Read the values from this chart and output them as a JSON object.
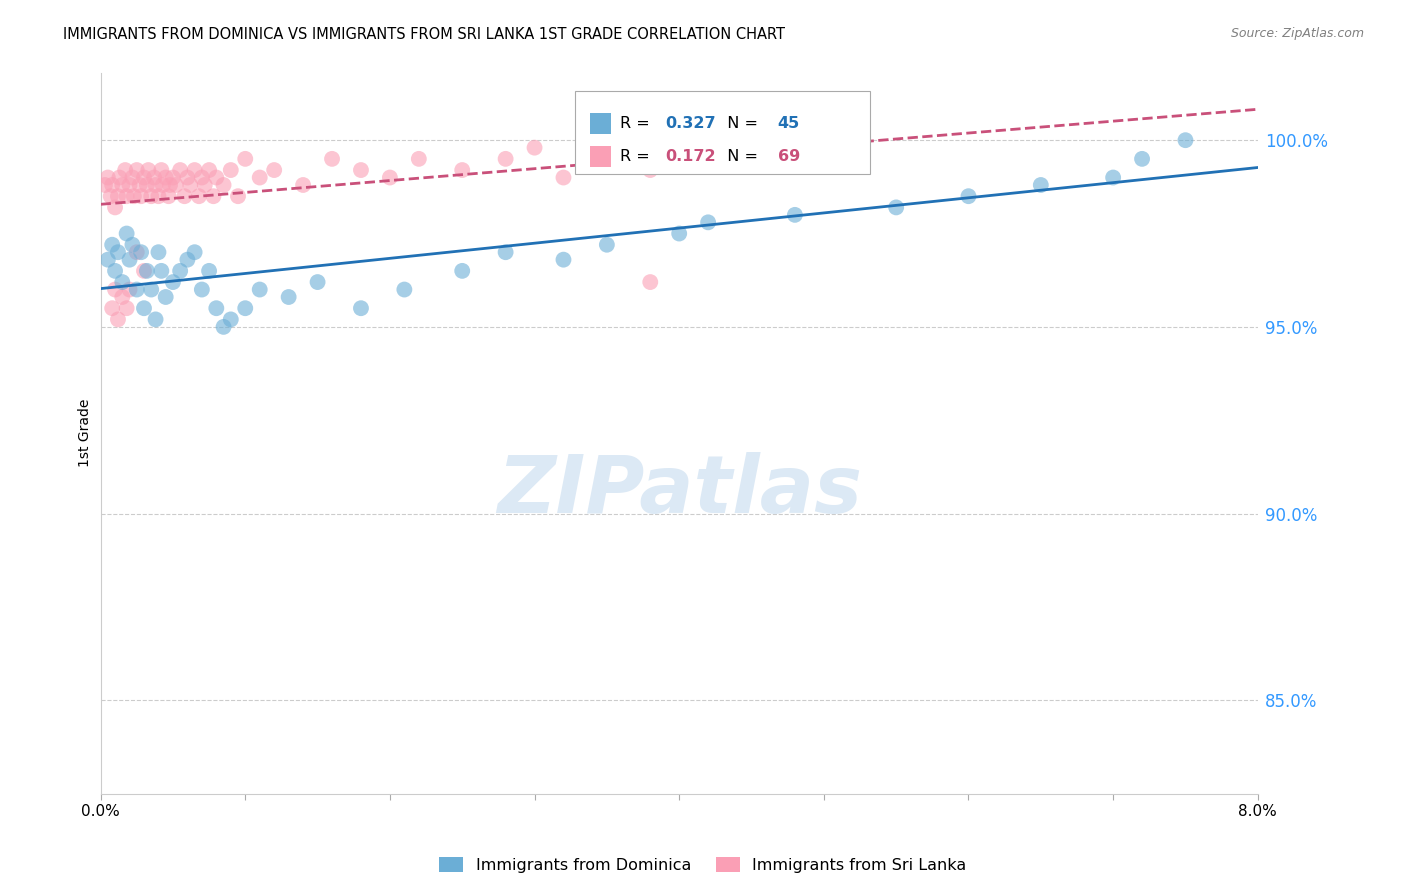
{
  "title": "IMMIGRANTS FROM DOMINICA VS IMMIGRANTS FROM SRI LANKA 1ST GRADE CORRELATION CHART",
  "source": "Source: ZipAtlas.com",
  "ylabel": "1st Grade",
  "right_yticks": [
    100.0,
    95.0,
    90.0,
    85.0
  ],
  "xlim": [
    0.0,
    8.0
  ],
  "ylim": [
    82.5,
    101.8
  ],
  "dominica_R": 0.327,
  "dominica_N": 45,
  "srilanka_R": 0.172,
  "srilanka_N": 69,
  "dominica_color": "#6baed6",
  "srilanka_color": "#fa9fb5",
  "trend_dominica_color": "#2171b5",
  "trend_srilanka_color": "#c9507a",
  "watermark_color": "#dce9f5",
  "dominica_x": [
    0.05,
    0.08,
    0.1,
    0.12,
    0.15,
    0.18,
    0.2,
    0.22,
    0.25,
    0.28,
    0.3,
    0.32,
    0.35,
    0.38,
    0.4,
    0.42,
    0.45,
    0.5,
    0.55,
    0.6,
    0.65,
    0.7,
    0.75,
    0.8,
    0.85,
    0.9,
    1.0,
    1.1,
    1.3,
    1.5,
    1.8,
    2.1,
    2.5,
    2.8,
    3.2,
    3.5,
    4.0,
    4.2,
    4.8,
    5.5,
    6.0,
    6.5,
    7.0,
    7.2,
    7.5
  ],
  "dominica_y": [
    96.8,
    97.2,
    96.5,
    97.0,
    96.2,
    97.5,
    96.8,
    97.2,
    96.0,
    97.0,
    95.5,
    96.5,
    96.0,
    95.2,
    97.0,
    96.5,
    95.8,
    96.2,
    96.5,
    96.8,
    97.0,
    96.0,
    96.5,
    95.5,
    95.0,
    95.2,
    95.5,
    96.0,
    95.8,
    96.2,
    95.5,
    96.0,
    96.5,
    97.0,
    96.8,
    97.2,
    97.5,
    97.8,
    98.0,
    98.2,
    98.5,
    98.8,
    99.0,
    99.5,
    100.0
  ],
  "srilanka_x": [
    0.03,
    0.05,
    0.07,
    0.08,
    0.1,
    0.12,
    0.13,
    0.15,
    0.17,
    0.18,
    0.2,
    0.22,
    0.23,
    0.25,
    0.27,
    0.28,
    0.3,
    0.32,
    0.33,
    0.35,
    0.37,
    0.38,
    0.4,
    0.42,
    0.43,
    0.45,
    0.47,
    0.48,
    0.5,
    0.52,
    0.55,
    0.58,
    0.6,
    0.62,
    0.65,
    0.68,
    0.7,
    0.72,
    0.75,
    0.78,
    0.8,
    0.85,
    0.9,
    0.95,
    1.0,
    1.1,
    1.2,
    1.4,
    1.6,
    1.8,
    2.0,
    2.2,
    2.5,
    2.8,
    3.0,
    3.2,
    3.5,
    3.8,
    4.0,
    4.5,
    0.08,
    0.1,
    0.12,
    0.15,
    0.18,
    0.2,
    0.25,
    0.3,
    3.8
  ],
  "srilanka_y": [
    98.8,
    99.0,
    98.5,
    98.8,
    98.2,
    98.5,
    99.0,
    98.8,
    99.2,
    98.5,
    98.8,
    99.0,
    98.5,
    99.2,
    98.8,
    98.5,
    99.0,
    98.8,
    99.2,
    98.5,
    99.0,
    98.8,
    98.5,
    99.2,
    98.8,
    99.0,
    98.5,
    98.8,
    99.0,
    98.8,
    99.2,
    98.5,
    99.0,
    98.8,
    99.2,
    98.5,
    99.0,
    98.8,
    99.2,
    98.5,
    99.0,
    98.8,
    99.2,
    98.5,
    99.5,
    99.0,
    99.2,
    98.8,
    99.5,
    99.2,
    99.0,
    99.5,
    99.2,
    99.5,
    99.8,
    99.0,
    99.5,
    99.2,
    99.8,
    100.0,
    95.5,
    96.0,
    95.2,
    95.8,
    95.5,
    96.0,
    97.0,
    96.5,
    96.2
  ]
}
